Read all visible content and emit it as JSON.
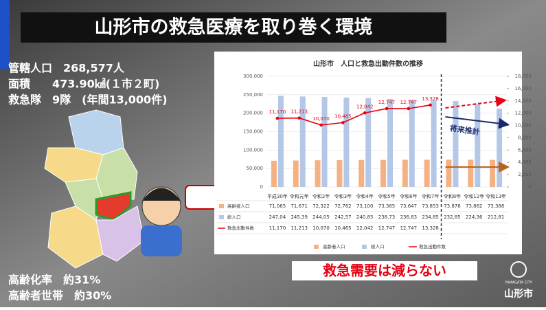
{
  "header": {
    "title": "山形市の救急医療を取り巻く環境"
  },
  "bullets_top": [
    "管轄人口　268,577人",
    "面積　　473.90㎢(１市２町)",
    "救急隊　9隊　(年間13,000件)"
  ],
  "bullets_bottom": [
    "高齢化率　約31%",
    "高齢者世帯　約30%"
  ],
  "headline": "救急需要は減らない",
  "logo": {
    "text": "山形市",
    "sub": "YAMAGATA CITY"
  },
  "chart_data": {
    "type": "bar",
    "title": "山形市　人口と救急出動件数の推移",
    "categories": [
      "平成30年",
      "令和元年",
      "令和2年",
      "令和3年",
      "令和4年",
      "令和5年",
      "令和6年",
      "令和7年",
      "令和8年",
      "令和12年",
      "令和13年"
    ],
    "series": [
      {
        "name": "高齢者人口",
        "color": "#f4b183",
        "values": [
          71065,
          71671,
          72322,
          72762,
          73100,
          73365,
          73647,
          73853,
          73876,
          73862,
          73388
        ],
        "value_labels": [
          "71,065",
          "71,671",
          "72,322",
          "72,762",
          "73,100",
          "73,365",
          "73,647",
          "73,853",
          "73,876",
          "73,862",
          "73,388"
        ]
      },
      {
        "name": "総人口",
        "color": "#b4c7e7",
        "values": [
          247040,
          245390,
          244050,
          242570,
          240850,
          238730,
          236830,
          234850,
          232850,
          224360,
          212810
        ],
        "value_labels": [
          "247,04",
          "245,39",
          "244,05",
          "242,57",
          "240,85",
          "238,73",
          "236,83",
          "234,85",
          "232,85",
          "224,36",
          "212,81"
        ]
      },
      {
        "name": "救急出動件数",
        "color": "#e60012",
        "type": "line",
        "axis": "y2",
        "values": [
          11170,
          11213,
          10070,
          10465,
          12042,
          12747,
          12747,
          13328,
          null,
          null,
          null
        ],
        "value_labels": [
          "11,170",
          "11,213",
          "10,070",
          "10,465",
          "12,042",
          "12,747",
          "12,747",
          "13,328",
          null,
          null,
          null
        ]
      }
    ],
    "ylim": [
      0,
      300000
    ],
    "yticks": [
      0,
      {
        "value": 50000,
        "label": "50,000"
      },
      {
        "value": 100000,
        "label": "100,000"
      },
      {
        "value": 150000,
        "label": "150,000"
      },
      {
        "value": 200000,
        "label": "200,000"
      },
      {
        "value": 250000,
        "label": "250,000"
      },
      {
        "value": 300000,
        "label": "300,000"
      }
    ],
    "y2lim": [
      0,
      18000
    ],
    "y2ticks": [
      0,
      {
        "value": 2000,
        "label": "2,000"
      },
      {
        "value": 4000,
        "label": "4,000"
      },
      {
        "value": 6000,
        "label": "6,000"
      },
      {
        "value": 8000,
        "label": "8,000"
      },
      {
        "value": 10000,
        "label": "10,000"
      },
      {
        "value": 12000,
        "label": "12,000"
      },
      {
        "value": 14000,
        "label": "14,000"
      },
      {
        "value": 16000,
        "label": "16,000"
      },
      {
        "value": 18000,
        "label": "18,000"
      }
    ],
    "annotation": "将来推計"
  }
}
